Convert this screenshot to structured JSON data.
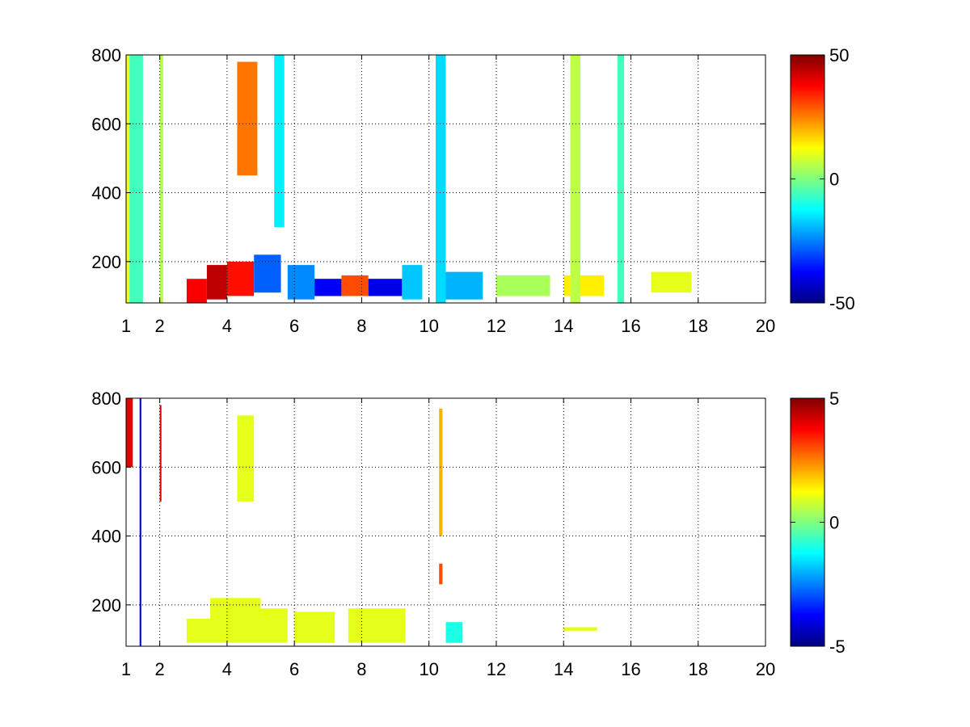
{
  "chart_data": [
    {
      "type": "heatmap",
      "title": "",
      "xlabel": "",
      "ylabel": "",
      "xlim": [
        1,
        20
      ],
      "ylim": [
        80,
        800
      ],
      "x_ticks": [
        1,
        2,
        4,
        6,
        8,
        10,
        12,
        14,
        16,
        18,
        20
      ],
      "y_ticks": [
        200,
        400,
        600,
        800
      ],
      "grid": true,
      "colormap": "jet",
      "clim": [
        -50,
        50
      ],
      "colorbar_ticks": [
        50,
        0,
        -50
      ],
      "regions": [
        {
          "x": [
            1.0,
            1.1
          ],
          "y": [
            80,
            800
          ],
          "value": 12
        },
        {
          "x": [
            1.1,
            1.5
          ],
          "y": [
            80,
            800
          ],
          "value": -6
        },
        {
          "x": [
            2.0,
            2.1
          ],
          "y": [
            80,
            800
          ],
          "value": 5
        },
        {
          "x": [
            2.8,
            3.4
          ],
          "y": [
            80,
            150
          ],
          "value": 38
        },
        {
          "x": [
            3.4,
            4.0
          ],
          "y": [
            90,
            190
          ],
          "value": 44
        },
        {
          "x": [
            4.0,
            4.8
          ],
          "y": [
            100,
            200
          ],
          "value": 36
        },
        {
          "x": [
            4.8,
            5.6
          ],
          "y": [
            110,
            220
          ],
          "value": -28
        },
        {
          "x": [
            4.3,
            4.9
          ],
          "y": [
            450,
            780
          ],
          "value": 26
        },
        {
          "x": [
            5.4,
            5.7
          ],
          "y": [
            300,
            800
          ],
          "value": -14
        },
        {
          "x": [
            5.8,
            6.6
          ],
          "y": [
            90,
            190
          ],
          "value": -24
        },
        {
          "x": [
            6.6,
            7.4
          ],
          "y": [
            100,
            150
          ],
          "value": -38
        },
        {
          "x": [
            7.4,
            8.2
          ],
          "y": [
            100,
            160
          ],
          "value": 30
        },
        {
          "x": [
            8.2,
            9.2
          ],
          "y": [
            100,
            150
          ],
          "value": -40
        },
        {
          "x": [
            9.2,
            9.8
          ],
          "y": [
            90,
            190
          ],
          "value": -18
        },
        {
          "x": [
            10.2,
            10.5
          ],
          "y": [
            80,
            800
          ],
          "value": -16
        },
        {
          "x": [
            10.5,
            11.6
          ],
          "y": [
            90,
            170
          ],
          "value": -20
        },
        {
          "x": [
            12.0,
            13.6
          ],
          "y": [
            100,
            160
          ],
          "value": 4
        },
        {
          "x": [
            14.0,
            15.2
          ],
          "y": [
            100,
            160
          ],
          "value": 14
        },
        {
          "x": [
            14.2,
            14.5
          ],
          "y": [
            80,
            800
          ],
          "value": 6
        },
        {
          "x": [
            15.6,
            15.8
          ],
          "y": [
            80,
            800
          ],
          "value": -6
        },
        {
          "x": [
            16.6,
            17.8
          ],
          "y": [
            110,
            170
          ],
          "value": 10
        }
      ]
    },
    {
      "type": "heatmap",
      "title": "",
      "xlabel": "",
      "ylabel": "",
      "xlim": [
        1,
        20
      ],
      "ylim": [
        80,
        800
      ],
      "x_ticks": [
        1,
        2,
        4,
        6,
        8,
        10,
        12,
        14,
        16,
        18,
        20
      ],
      "y_ticks": [
        200,
        400,
        600,
        800
      ],
      "grid": true,
      "colormap": "jet",
      "clim": [
        -5,
        5
      ],
      "colorbar_ticks": [
        5,
        0,
        -5
      ],
      "regions": [
        {
          "x": [
            1.0,
            1.2
          ],
          "y": [
            600,
            800
          ],
          "value": 4
        },
        {
          "x": [
            1.4,
            1.45
          ],
          "y": [
            80,
            800
          ],
          "value": -4
        },
        {
          "x": [
            2.0,
            2.05
          ],
          "y": [
            500,
            780
          ],
          "value": 4
        },
        {
          "x": [
            2.8,
            4.0
          ],
          "y": [
            90,
            160
          ],
          "value": 1
        },
        {
          "x": [
            3.5,
            5.0
          ],
          "y": [
            100,
            220
          ],
          "value": 1
        },
        {
          "x": [
            4.0,
            5.8
          ],
          "y": [
            90,
            190
          ],
          "value": 1
        },
        {
          "x": [
            4.3,
            4.8
          ],
          "y": [
            500,
            750
          ],
          "value": 1
        },
        {
          "x": [
            6.0,
            7.2
          ],
          "y": [
            90,
            180
          ],
          "value": 1
        },
        {
          "x": [
            7.6,
            9.3
          ],
          "y": [
            90,
            190
          ],
          "value": 1
        },
        {
          "x": [
            10.3,
            10.4
          ],
          "y": [
            400,
            770
          ],
          "value": 2
        },
        {
          "x": [
            10.3,
            10.4
          ],
          "y": [
            260,
            320
          ],
          "value": 3
        },
        {
          "x": [
            10.5,
            11.0
          ],
          "y": [
            90,
            150
          ],
          "value": -1
        },
        {
          "x": [
            14.0,
            15.0
          ],
          "y": [
            125,
            135
          ],
          "value": 1
        }
      ]
    }
  ]
}
